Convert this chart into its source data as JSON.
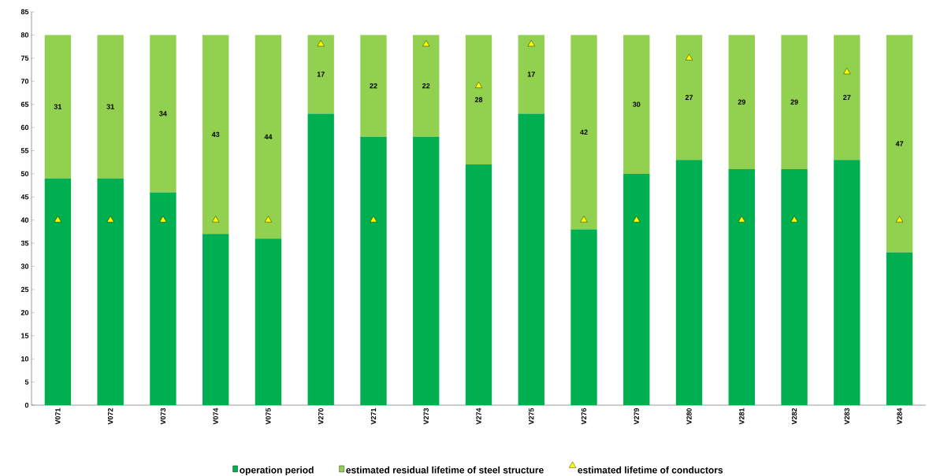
{
  "chart_data": {
    "type": "bar",
    "stacked": true,
    "legend": "bottom",
    "categories": [
      "V071",
      "V072",
      "V073",
      "V074",
      "V075",
      "V270",
      "V271",
      "V273",
      "V274",
      "V275",
      "V276",
      "V279",
      "V280",
      "V281",
      "V282",
      "V283",
      "V284"
    ],
    "ylim": [
      0,
      85
    ],
    "yticks": [
      0,
      5,
      10,
      15,
      20,
      25,
      30,
      35,
      40,
      45,
      50,
      55,
      60,
      65,
      70,
      75,
      80,
      85
    ],
    "series": [
      {
        "name": "operation period",
        "color": "#00b050",
        "values": [
          49,
          49,
          46,
          37,
          36,
          63,
          58,
          58,
          52,
          63,
          38,
          50,
          53,
          51,
          51,
          53,
          33
        ]
      },
      {
        "name": "estimated residual lifetime of steel structure",
        "color": "#92d050",
        "values": [
          31,
          31,
          34,
          43,
          44,
          17,
          22,
          22,
          28,
          17,
          42,
          30,
          27,
          29,
          29,
          27,
          47
        ],
        "value_labels": [
          "31",
          "31",
          "34",
          "43",
          "44",
          "17",
          "22",
          "22",
          "28",
          "17",
          "42",
          "30",
          "27",
          "29",
          "29",
          "27",
          "47"
        ]
      },
      {
        "name": "estimated lifetime of conductors",
        "type": "scatter",
        "marker": "triangle",
        "color": "#ffff00",
        "x": [
          "V071",
          "V072",
          "V073",
          "V074",
          "V075",
          "V270",
          "V271",
          "V273",
          "V274",
          "V275",
          "V276",
          "V279",
          "V280",
          "V281",
          "V282",
          "V283",
          "V284"
        ],
        "values": [
          40,
          40,
          40,
          40,
          40,
          78,
          40,
          78,
          69,
          78,
          40,
          40,
          75,
          40,
          40,
          72,
          40
        ]
      }
    ]
  }
}
